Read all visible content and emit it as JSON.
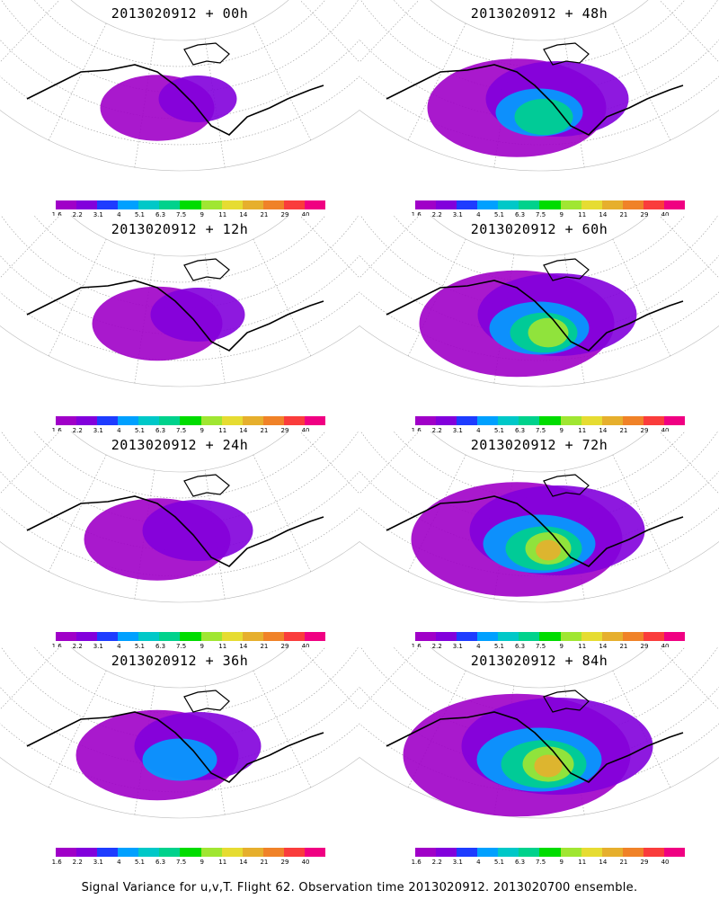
{
  "panels": [
    {
      "title": "2013020912 + 00h",
      "intensity": 0.15
    },
    {
      "title": "2013020912 + 48h",
      "intensity": 0.55
    },
    {
      "title": "2013020912 + 12h",
      "intensity": 0.25
    },
    {
      "title": "2013020912 + 60h",
      "intensity": 0.65
    },
    {
      "title": "2013020912 + 24h",
      "intensity": 0.35
    },
    {
      "title": "2013020912 + 72h",
      "intensity": 0.75
    },
    {
      "title": "2013020912 + 36h",
      "intensity": 0.45
    },
    {
      "title": "2013020912 + 84h",
      "intensity": 0.85
    }
  ],
  "colorbar": {
    "labels": [
      "1.6",
      "2.2",
      "3.1",
      "4",
      "5.1",
      "6.3",
      "7.5",
      "9",
      "11",
      "14",
      "21",
      "29",
      "40"
    ],
    "colors": [
      "#a000c8",
      "#8200dc",
      "#1e3cff",
      "#00a0ff",
      "#00c8c8",
      "#00d28c",
      "#00dc00",
      "#a0e632",
      "#e6dc32",
      "#e6af2d",
      "#f08228",
      "#fa3c3c",
      "#f00082"
    ]
  },
  "footer": "Signal Variance for u,v,T. Flight 62. Observation time 2013020912. 2013020700 ensemble."
}
